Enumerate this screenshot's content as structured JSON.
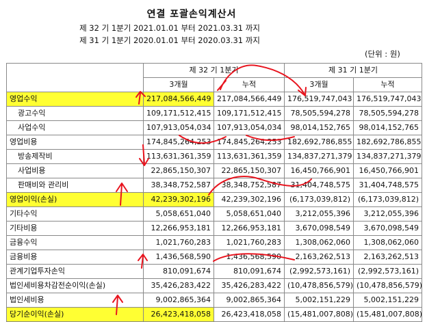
{
  "header": {
    "title": "연결 포괄손익계산서",
    "period_current": "제 32 기 1분기 2021.01.01 부터 2021.03.31 까지",
    "period_prior": "제 31 기 1분기 2020.01.01 부터 2020.03.31 까지",
    "unit": "(단위 : 원)"
  },
  "columns": {
    "current_period": "제 32 기 1분기",
    "prior_period": "제 31 기 1분기",
    "three_month": "3개월",
    "cumulative": "누적"
  },
  "rows": [
    {
      "label": "영업수익",
      "c3": "217,084,566,449",
      "cc": "217,084,566,449",
      "p3": "176,519,747,043",
      "pc": "176,519,747,043"
    },
    {
      "label": "광고수익",
      "c3": "109,171,512,415",
      "cc": "109,171,512,415",
      "p3": "78,505,594,278",
      "pc": "78,505,594,278"
    },
    {
      "label": "사업수익",
      "c3": "107,913,054,034",
      "cc": "107,913,054,034",
      "p3": "98,014,152,765",
      "pc": "98,014,152,765"
    },
    {
      "label": "영업비용",
      "c3": "174,845,264,253",
      "cc": "174,845,264,253",
      "p3": "182,692,786,855",
      "pc": "182,692,786,855"
    },
    {
      "label": "방송제작비",
      "c3": "113,631,361,359",
      "cc": "113,631,361,359",
      "p3": "134,837,271,379",
      "pc": "134,837,271,379"
    },
    {
      "label": "사업비용",
      "c3": "22,865,150,307",
      "cc": "22,865,150,307",
      "p3": "16,450,766,901",
      "pc": "16,450,766,901"
    },
    {
      "label": "판매비와 관리비",
      "c3": "38,348,752,587",
      "cc": "38,348,752,587",
      "p3": "31,404,748,575",
      "pc": "31,404,748,575"
    },
    {
      "label": "영업이익(손실)",
      "c3": "42,239,302,196",
      "cc": "42,239,302,196",
      "p3": "(6,173,039,812)",
      "pc": "(6,173,039,812)"
    },
    {
      "label": "기타수익",
      "c3": "5,058,651,040",
      "cc": "5,058,651,040",
      "p3": "3,212,055,396",
      "pc": "3,212,055,396"
    },
    {
      "label": "기타비용",
      "c3": "12,266,953,181",
      "cc": "12,266,953,181",
      "p3": "3,670,098,549",
      "pc": "3,670,098,549"
    },
    {
      "label": "금융수익",
      "c3": "1,021,760,283",
      "cc": "1,021,760,283",
      "p3": "1,308,062,060",
      "pc": "1,308,062,060"
    },
    {
      "label": "금융비용",
      "c3": "1,436,568,590",
      "cc": "1,436,568,590",
      "p3": "2,163,262,513",
      "pc": "2,163,262,513"
    },
    {
      "label": "관계기업투자손익",
      "c3": "810,091,674",
      "cc": "810,091,674",
      "p3": "(2,992,573,161)",
      "pc": "(2,992,573,161)"
    },
    {
      "label": "법인세비용차감전순이익(손실)",
      "c3": "35,426,283,422",
      "cc": "35,426,283,422",
      "p3": "(10,478,856,579)",
      "pc": "(10,478,856,579)"
    },
    {
      "label": "법인세비용",
      "c3": "9,002,865,364",
      "cc": "9,002,865,364",
      "p3": "5,002,151,229",
      "pc": "5,002,151,229"
    },
    {
      "label": "당기순이익(손실)",
      "c3": "26,423,418,058",
      "cc": "26,423,418,058",
      "p3": "(15,481,007,808)",
      "pc": "(15,481,007,808)"
    }
  ],
  "colors": {
    "highlight": "#ffff33",
    "annotation": "#e8141e",
    "border": "#888888"
  }
}
